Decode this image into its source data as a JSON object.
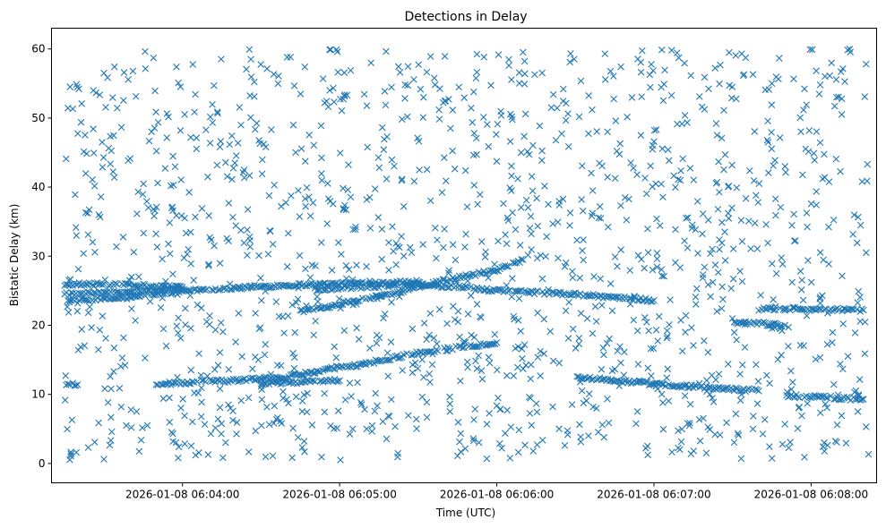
{
  "chart_data": {
    "type": "scatter",
    "title": "Detections in Delay",
    "xlabel": "Time (UTC)",
    "ylabel": "Bistatic Delay (km)",
    "marker": "x",
    "color": "#1f77b4",
    "grid": false,
    "xlim": [
      "2026-01-08 06:03:10",
      "2026-01-08 06:08:25"
    ],
    "ylim": [
      -2.8,
      63
    ],
    "x_ticks": [
      "2026-01-08 06:04:00",
      "2026-01-08 06:05:00",
      "2026-01-08 06:06:00",
      "2026-01-08 06:07:00",
      "2026-01-08 06:08:00"
    ],
    "y_ticks": [
      0,
      10,
      20,
      30,
      40,
      50,
      60
    ],
    "tracks": [
      {
        "points": [
          [
            "2026-01-08 06:03:15",
            23.5
          ],
          [
            "2026-01-08 06:03:40",
            24.0
          ],
          [
            "2026-01-08 06:04:00",
            25.0
          ],
          [
            "2026-01-08 06:04:40",
            25.8
          ],
          [
            "2026-01-08 06:05:00",
            26.0
          ],
          [
            "2026-01-08 06:05:30",
            26.3
          ]
        ]
      },
      {
        "points": [
          [
            "2026-01-08 06:03:15",
            26.0
          ],
          [
            "2026-01-08 06:03:40",
            25.8
          ],
          [
            "2026-01-08 06:04:00",
            25.5
          ]
        ]
      },
      {
        "points": [
          [
            "2026-01-08 06:03:15",
            24.5
          ],
          [
            "2026-01-08 06:03:40",
            24.8
          ],
          [
            "2026-01-08 06:04:00",
            25.2
          ]
        ]
      },
      {
        "points": [
          [
            "2026-01-08 06:04:45",
            22.0
          ],
          [
            "2026-01-08 06:05:20",
            24.5
          ],
          [
            "2026-01-08 06:05:40",
            26.5
          ],
          [
            "2026-01-08 06:06:00",
            28.0
          ],
          [
            "2026-01-08 06:06:10",
            29.5
          ]
        ]
      },
      {
        "points": [
          [
            "2026-01-08 06:04:50",
            25.2
          ],
          [
            "2026-01-08 06:05:30",
            26.0
          ]
        ]
      },
      {
        "points": [
          [
            "2026-01-08 06:05:30",
            26.0
          ],
          [
            "2026-01-08 06:06:00",
            25.0
          ],
          [
            "2026-01-08 06:06:30",
            24.5
          ],
          [
            "2026-01-08 06:07:00",
            23.6
          ]
        ]
      },
      {
        "points": [
          [
            "2026-01-08 06:03:15",
            11.5
          ],
          [
            "2026-01-08 06:03:20",
            11.4
          ]
        ]
      },
      {
        "points": [
          [
            "2026-01-08 06:03:50",
            11.5
          ],
          [
            "2026-01-08 06:04:20",
            12.0
          ],
          [
            "2026-01-08 06:04:40",
            12.5
          ],
          [
            "2026-01-08 06:05:00",
            14.0
          ],
          [
            "2026-01-08 06:05:10",
            14.3
          ]
        ]
      },
      {
        "points": [
          [
            "2026-01-08 06:04:30",
            11.6
          ],
          [
            "2026-01-08 06:05:00",
            12.0
          ]
        ]
      },
      {
        "points": [
          [
            "2026-01-08 06:05:10",
            14.5
          ],
          [
            "2026-01-08 06:05:30",
            16.0
          ],
          [
            "2026-01-08 06:06:00",
            17.5
          ]
        ]
      },
      {
        "points": [
          [
            "2026-01-08 06:06:30",
            12.5
          ],
          [
            "2026-01-08 06:07:00",
            11.5
          ],
          [
            "2026-01-08 06:07:20",
            11.0
          ],
          [
            "2026-01-08 06:07:40",
            10.5
          ]
        ]
      },
      {
        "points": [
          [
            "2026-01-08 06:07:30",
            20.5
          ],
          [
            "2026-01-08 06:07:50",
            20.0
          ]
        ]
      },
      {
        "points": [
          [
            "2026-01-08 06:07:40",
            22.4
          ],
          [
            "2026-01-08 06:08:20",
            22.2
          ]
        ]
      },
      {
        "points": [
          [
            "2026-01-08 06:07:50",
            9.8
          ],
          [
            "2026-01-08 06:08:20",
            9.3
          ]
        ]
      }
    ],
    "points": [
      [
        "2026-01-08 06:03:24",
        2.3
      ],
      [
        "2026-01-08 06:03:17",
        23.6
      ],
      [
        "2026-01-08 06:03:30",
        56.5
      ],
      [
        "2026-01-08 06:03:55",
        9.5
      ],
      [
        "2026-01-08 06:04:05",
        1.2
      ],
      [
        "2026-01-08 06:04:20",
        43.5
      ],
      [
        "2026-01-08 06:04:40",
        58.8
      ],
      [
        "2026-01-08 06:05:05",
        5.0
      ],
      [
        "2026-01-08 06:05:25",
        54.8
      ],
      [
        "2026-01-08 06:05:45",
        1.1
      ],
      [
        "2026-01-08 06:06:10",
        59.5
      ],
      [
        "2026-01-08 06:06:35",
        4.0
      ],
      [
        "2026-01-08 06:06:55",
        47.5
      ],
      [
        "2026-01-08 06:07:20",
        1.5
      ],
      [
        "2026-01-08 06:07:45",
        55.0
      ],
      [
        "2026-01-08 06:08:05",
        3.0
      ],
      [
        "2026-01-08 06:08:21",
        57.8
      ],
      [
        "2026-01-08 06:08:21",
        30.5
      ],
      [
        "2026-01-08 06:08:21",
        5.3
      ]
    ],
    "background_clutter": {
      "approx_count": 1400,
      "x_range": [
        "2026-01-08 06:03:15",
        "2026-01-08 06:08:22"
      ],
      "y_range": [
        0.5,
        60
      ]
    }
  }
}
